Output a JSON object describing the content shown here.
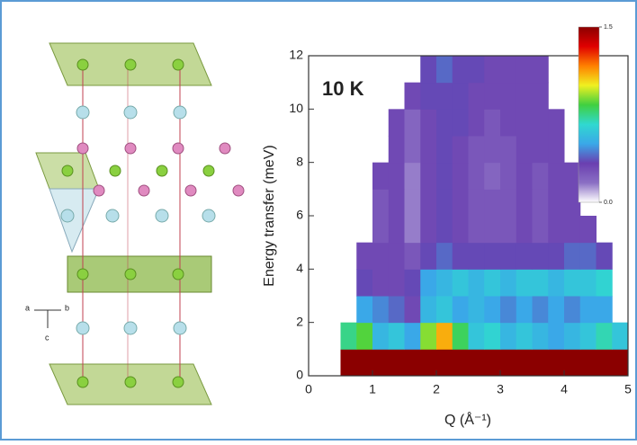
{
  "chart_data": {
    "type": "heatmap",
    "annotation": "10 K",
    "xlabel": "Q (Å⁻¹)",
    "ylabel": "Energy transfer (meV)",
    "xlim": [
      0,
      5
    ],
    "xticks": [
      0,
      1,
      2,
      3,
      4,
      5
    ],
    "ylim": [
      0,
      12
    ],
    "yticks": [
      0,
      2,
      4,
      6,
      8,
      10,
      12
    ],
    "x": [
      0.625,
      0.875,
      1.125,
      1.375,
      1.625,
      1.875,
      2.125,
      2.375,
      2.625,
      2.875,
      3.125,
      3.375,
      3.625,
      3.875,
      4.125,
      4.375,
      4.625,
      4.875
    ],
    "y": [
      0.5,
      1.5,
      2.5,
      3.5,
      4.5,
      5.5,
      6.5,
      7.5,
      8.5,
      9.5,
      10.5,
      11.5
    ],
    "z": [
      [
        1.5,
        1.5,
        1.5,
        1.5,
        1.5,
        1.5,
        1.5,
        1.5,
        1.5,
        1.5,
        1.5,
        1.5,
        1.5,
        1.5,
        1.5,
        1.5,
        1.5,
        1.5
      ],
      [
        0.75,
        0.85,
        0.55,
        0.6,
        0.5,
        0.9,
        1.1,
        0.8,
        0.6,
        0.65,
        0.55,
        0.6,
        0.55,
        0.5,
        0.55,
        0.6,
        0.7,
        0.6
      ],
      [
        null,
        0.5,
        0.45,
        0.4,
        0.3,
        0.55,
        0.6,
        0.5,
        0.55,
        0.5,
        0.45,
        0.5,
        0.45,
        0.5,
        0.45,
        0.5,
        0.5,
        null
      ],
      [
        null,
        0.35,
        0.3,
        0.3,
        0.35,
        0.5,
        0.55,
        0.6,
        0.55,
        0.6,
        0.55,
        0.6,
        0.6,
        0.55,
        0.6,
        0.6,
        0.65,
        null
      ],
      [
        null,
        0.3,
        0.3,
        0.3,
        0.25,
        0.35,
        0.4,
        0.35,
        0.35,
        0.35,
        0.35,
        0.35,
        0.35,
        0.35,
        0.4,
        0.4,
        0.35,
        null
      ],
      [
        null,
        null,
        0.25,
        0.3,
        0.15,
        0.3,
        0.35,
        0.3,
        0.25,
        0.25,
        0.25,
        0.3,
        0.25,
        0.3,
        0.3,
        0.3,
        null,
        null
      ],
      [
        null,
        null,
        0.25,
        0.3,
        0.15,
        0.3,
        0.35,
        0.3,
        0.25,
        0.25,
        0.25,
        0.3,
        0.25,
        0.3,
        0.3,
        null,
        null,
        null
      ],
      [
        null,
        null,
        0.3,
        0.3,
        0.15,
        0.3,
        0.35,
        0.3,
        0.25,
        0.2,
        0.25,
        0.3,
        0.25,
        0.3,
        0.3,
        null,
        null,
        null
      ],
      [
        null,
        null,
        null,
        0.3,
        0.2,
        0.3,
        0.35,
        0.3,
        0.25,
        0.25,
        0.25,
        0.3,
        0.3,
        0.3,
        null,
        null,
        null,
        null
      ],
      [
        null,
        null,
        null,
        0.3,
        0.2,
        0.3,
        0.35,
        0.35,
        0.3,
        0.25,
        0.3,
        0.3,
        0.3,
        0.3,
        null,
        null,
        null,
        null
      ],
      [
        null,
        null,
        null,
        null,
        0.3,
        0.35,
        0.35,
        0.35,
        0.3,
        0.3,
        0.3,
        0.3,
        0.3,
        null,
        null,
        null,
        null,
        null
      ],
      [
        null,
        null,
        null,
        null,
        null,
        0.35,
        0.4,
        0.35,
        0.35,
        0.3,
        0.3,
        0.3,
        0.3,
        null,
        null,
        null,
        null,
        null
      ]
    ],
    "colorscale": [
      "#ffffff",
      "#8a6fc4",
      "#6a3fb0",
      "#3aa8e8",
      "#30d8d0",
      "#40d040",
      "#f0f020",
      "#ff8000",
      "#e00000",
      "#8b0000"
    ],
    "zlim": [
      0,
      1.5
    ],
    "zticks": [
      {
        "value": 0,
        "label": "0.0"
      },
      1.5
    ]
  },
  "structure": {
    "axis_labels": [
      "a",
      "b",
      "c"
    ]
  }
}
